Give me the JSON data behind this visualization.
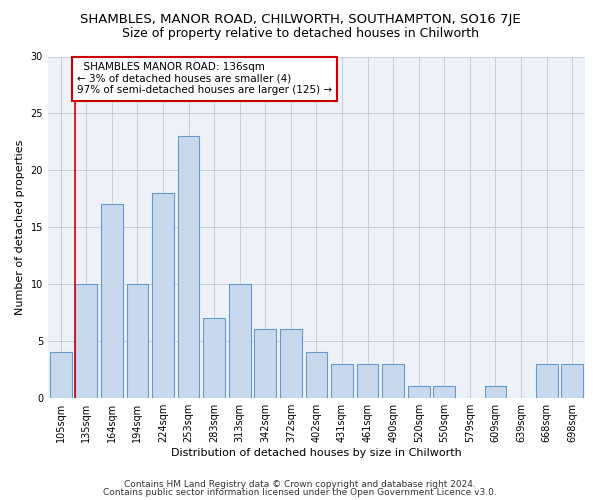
{
  "title": "SHAMBLES, MANOR ROAD, CHILWORTH, SOUTHAMPTON, SO16 7JE",
  "subtitle": "Size of property relative to detached houses in Chilworth",
  "xlabel": "Distribution of detached houses by size in Chilworth",
  "ylabel": "Number of detached properties",
  "categories": [
    "105sqm",
    "135sqm",
    "164sqm",
    "194sqm",
    "224sqm",
    "253sqm",
    "283sqm",
    "313sqm",
    "342sqm",
    "372sqm",
    "402sqm",
    "431sqm",
    "461sqm",
    "490sqm",
    "520sqm",
    "550sqm",
    "579sqm",
    "609sqm",
    "639sqm",
    "668sqm",
    "698sqm"
  ],
  "values": [
    4,
    10,
    17,
    10,
    18,
    23,
    7,
    10,
    6,
    6,
    4,
    3,
    3,
    3,
    1,
    1,
    0,
    1,
    0,
    3,
    3
  ],
  "bar_color": "#c8d9ee",
  "bar_edge_color": "#6699cc",
  "annotation_line1": "  SHAMBLES MANOR ROAD: 136sqm",
  "annotation_line2": "← 3% of detached houses are smaller (4)",
  "annotation_line3": "97% of semi-detached houses are larger (125) →",
  "annotation_box_color": "#ffffff",
  "annotation_box_edge_color": "#cc0000",
  "vline_color": "#cc0000",
  "ylim": [
    0,
    30
  ],
  "yticks": [
    0,
    5,
    10,
    15,
    20,
    25,
    30
  ],
  "footer1": "Contains HM Land Registry data © Crown copyright and database right 2024.",
  "footer2": "Contains public sector information licensed under the Open Government Licence v3.0.",
  "background_color": "#ffffff",
  "plot_bg_color": "#eef2f8",
  "title_fontsize": 9.5,
  "subtitle_fontsize": 9,
  "label_fontsize": 8,
  "tick_fontsize": 7,
  "footer_fontsize": 6.5,
  "annotation_fontsize": 7.5
}
